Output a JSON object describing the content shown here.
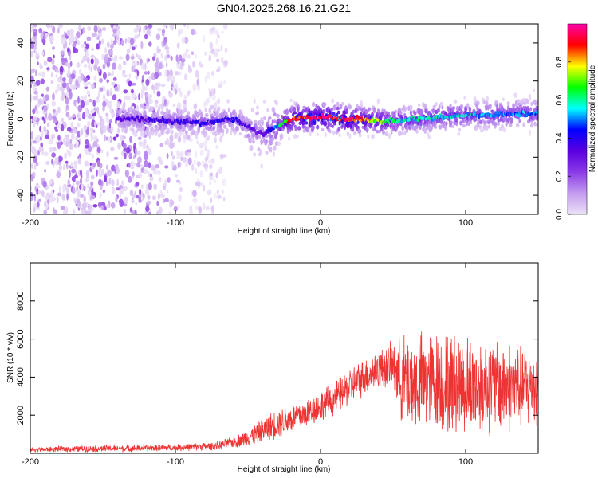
{
  "figure_title": "GN04.2025.268.16.21.G21",
  "colors": {
    "snr_line": "#ee3333",
    "colormap": [
      "#ece2f7",
      "#c39bef",
      "#8a3ae6",
      "#5a00e0",
      "#0000ff",
      "#00ffff",
      "#00ff00",
      "#ffff00",
      "#ff0000",
      "#ff00aa"
    ]
  },
  "chart_data": [
    {
      "type": "heatmap",
      "title": "GN04.2025.268.16.21.G21",
      "xlabel": "Height of straight line (km)",
      "ylabel": "Frequency (Hz)",
      "xlim": [
        -200,
        150
      ],
      "ylim": [
        -50,
        50
      ],
      "xticks": [
        -200,
        -100,
        0,
        100
      ],
      "yticks": [
        -40,
        -20,
        0,
        20,
        40
      ],
      "colorbar": {
        "label": "Normalized spectral amplitude",
        "range": [
          0,
          1
        ],
        "ticks": [
          0.0,
          0.2,
          0.4,
          0.6,
          0.8
        ]
      },
      "ridge": {
        "description_points": [
          {
            "x": -130,
            "freq": 0,
            "amp": 0.35
          },
          {
            "x": -80,
            "freq": -2,
            "amp": 0.4
          },
          {
            "x": -60,
            "freq": 0,
            "amp": 0.4
          },
          {
            "x": -40,
            "freq": -8,
            "amp": 0.3
          },
          {
            "x": -30,
            "freq": -4,
            "amp": 0.5
          },
          {
            "x": -20,
            "freq": 0,
            "amp": 0.9
          },
          {
            "x": 0,
            "freq": 1,
            "amp": 0.95
          },
          {
            "x": 20,
            "freq": 0,
            "amp": 0.95
          },
          {
            "x": 50,
            "freq": -1,
            "amp": 0.6
          },
          {
            "x": 100,
            "freq": 2,
            "amp": 0.55
          },
          {
            "x": 150,
            "freq": 3,
            "amp": 0.5
          }
        ],
        "noise_region_x": [
          -200,
          -65
        ]
      }
    },
    {
      "type": "line",
      "xlabel": "Height of straight line (km)",
      "ylabel": "SNR (10 * v/v)",
      "xlim": [
        -200,
        150
      ],
      "ylim": [
        0,
        10000
      ],
      "xticks": [
        -200,
        -100,
        0,
        100
      ],
      "yticks": [
        2000,
        4000,
        6000,
        8000
      ],
      "series": [
        {
          "name": "SNR",
          "envelope": {
            "x": [
              -200,
              -150,
              -100,
              -70,
              -55,
              -45,
              -35,
              -25,
              -10,
              0,
              10,
              20,
              30,
              40,
              50,
              55,
              60,
              80,
              100,
              120,
              150
            ],
            "mean": [
              200,
              250,
              300,
              400,
              700,
              1000,
              1400,
              1700,
              2100,
              2500,
              2900,
              3500,
              4000,
              4400,
              4600,
              4000,
              3700,
              3800,
              3600,
              3500,
              3500
            ],
            "spread": [
              150,
              200,
              200,
              250,
              400,
              600,
              800,
              900,
              900,
              900,
              1000,
              1100,
              1100,
              1200,
              1400,
              2500,
              2800,
              3000,
              3000,
              2800,
              2500
            ]
          }
        }
      ]
    }
  ]
}
